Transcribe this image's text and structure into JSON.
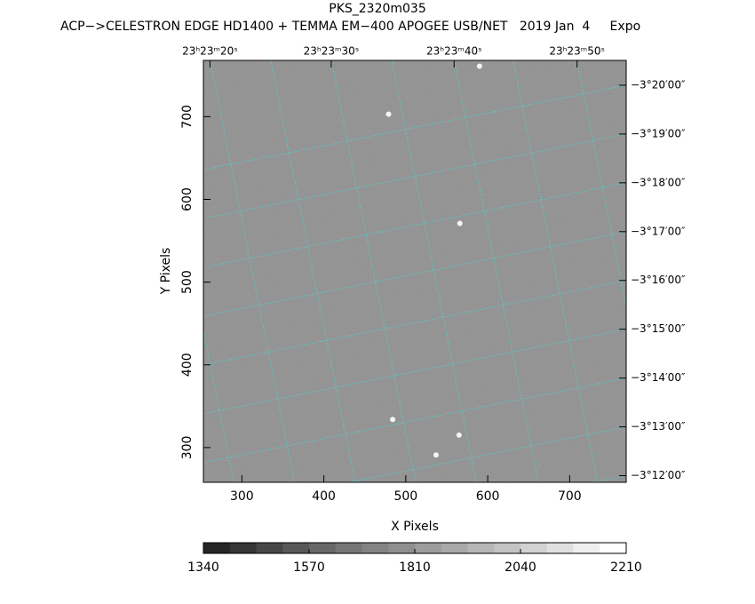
{
  "chart_data": {
    "type": "image",
    "title": "PKS_2320m035",
    "subtitle": "ACP−>CELESTRON EDGE HD1400 + TEMMA EM−400 APOGEE USB/NET   2019 Jan  4     Expo",
    "xlabel": "X Pixels",
    "ylabel": "Y Pixels",
    "xlim": [
      253,
      769
    ],
    "ylim": [
      258,
      768
    ],
    "xticks": [
      300,
      400,
      500,
      600,
      700
    ],
    "yticks": [
      300,
      400,
      500,
      600,
      700
    ],
    "ra_ticks": [
      {
        "value": 261,
        "label": "23ʰ23ᵐ20ˢ"
      },
      {
        "value": 409,
        "label": "23ʰ23ᵐ30ˢ"
      },
      {
        "value": 559,
        "label": "23ʰ23ᵐ40ˢ"
      },
      {
        "value": 709,
        "label": "23ʰ23ᵐ50ˢ"
      }
    ],
    "dec_ticks": [
      {
        "value": 738,
        "label": "−3°20′00″"
      },
      {
        "value": 679,
        "label": "−3°19′00″"
      },
      {
        "value": 620,
        "label": "−3°18′00″"
      },
      {
        "value": 561,
        "label": "−3°17′00″"
      },
      {
        "value": 502,
        "label": "−3°16′00″"
      },
      {
        "value": 443,
        "label": "−3°15′00″"
      },
      {
        "value": 384,
        "label": "−3°14′00″"
      },
      {
        "value": 325,
        "label": "−3°13′00″"
      },
      {
        "value": 266,
        "label": "−3°12′00″"
      }
    ],
    "grid": true,
    "grid_color": "#40e0e0",
    "sources": {
      "x": [
        479,
        566,
        484,
        565,
        537,
        590
      ],
      "y": [
        703,
        571,
        334,
        315,
        291,
        761
      ]
    },
    "colorbar": {
      "colors": [
        "#262626",
        "#363636",
        "#474747",
        "#585858",
        "#686868",
        "#767676",
        "#838383",
        "#8f8f8f",
        "#9c9c9c",
        "#a9a9a9",
        "#b6b6b6",
        "#c4c4c4",
        "#d2d2d2",
        "#e0e0e0",
        "#efefef",
        "#ffffff"
      ],
      "ticks": [
        1340,
        1570,
        1810,
        2040,
        2210
      ]
    }
  }
}
